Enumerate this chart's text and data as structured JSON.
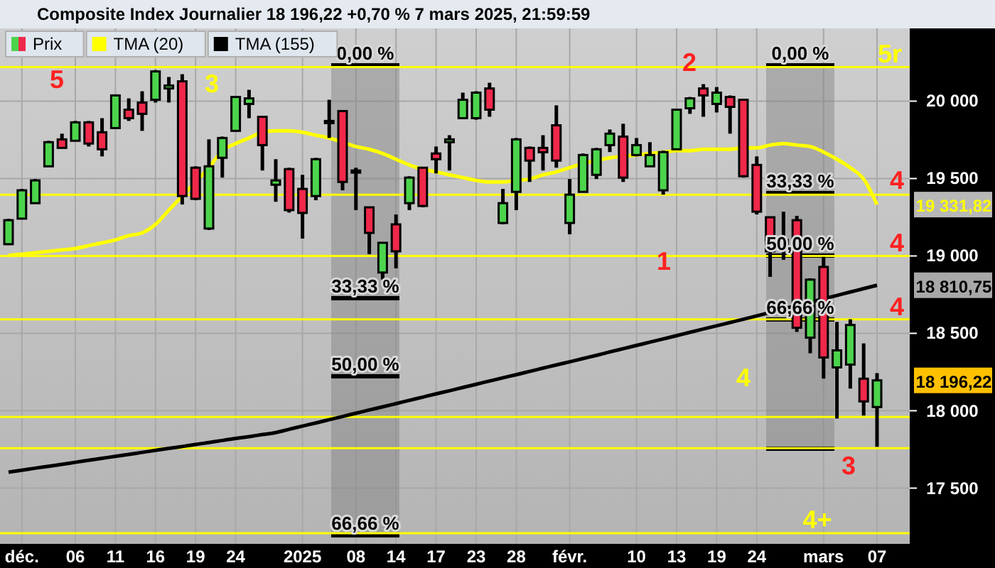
{
  "chart_data": {
    "type": "candlestick",
    "title": "Composite Index Journalier 18 196,22 +0,70 % 7 mars 2025, 21:59:59",
    "categories": [
      null,
      "déc.",
      null,
      null,
      null,
      "06",
      null,
      null,
      "11",
      null,
      null,
      "16",
      null,
      null,
      "19",
      null,
      null,
      "24",
      null,
      null,
      null,
      null,
      "2025",
      null,
      null,
      null,
      "08",
      null,
      null,
      "14",
      null,
      null,
      "17",
      null,
      null,
      "23",
      null,
      null,
      "28",
      null,
      null,
      null,
      "févr.",
      null,
      null,
      null,
      null,
      "10",
      null,
      null,
      "13",
      null,
      null,
      "19",
      null,
      null,
      "24",
      null,
      null,
      null,
      null,
      "mars",
      null,
      null,
      null,
      "07"
    ],
    "ylim": [
      17140,
      20470
    ],
    "yticks": [
      {
        "value": 17500,
        "label": "17 500"
      },
      {
        "value": 18000,
        "label": "18 000"
      },
      {
        "value": 18500,
        "label": "18 500"
      },
      {
        "value": 19000,
        "label": "19 000"
      },
      {
        "value": 19500,
        "label": "19 500"
      },
      {
        "value": 20000,
        "label": "20 000"
      }
    ],
    "grid": true,
    "legend": "top left",
    "series": [
      {
        "name": "TMA (20)",
        "type": "line",
        "color": "#ffff00",
        "values": [
          19003,
          19012,
          19021,
          19030,
          19039,
          19048,
          19067,
          19085,
          19103,
          19131,
          19149,
          19204,
          19296,
          19387,
          19478,
          19570,
          19680,
          19726,
          19762,
          19799,
          19808,
          19808,
          19799,
          19780,
          19762,
          19735,
          19707,
          19689,
          19662,
          19625,
          19588,
          19561,
          19543,
          19524,
          19506,
          19488,
          19478,
          19478,
          19488,
          19497,
          19524,
          19543,
          19570,
          19597,
          19616,
          19634,
          19643,
          19652,
          19662,
          19671,
          19680,
          19680,
          19689,
          19689,
          19689,
          19698,
          19698,
          19716,
          19726,
          19716,
          19707,
          19671,
          19625,
          19570,
          19497,
          19331.82
        ]
      },
      {
        "name": "TMA (155)",
        "type": "line",
        "color": "#000000",
        "values": [
          17603,
          17616,
          17629,
          17641,
          17654,
          17667,
          17680,
          17693,
          17705,
          17718,
          17731,
          17744,
          17757,
          17769,
          17782,
          17795,
          17808,
          17821,
          17833,
          17846,
          17859,
          17880,
          17901,
          17921,
          17942,
          17963,
          17984,
          18005,
          18025,
          18046,
          18067,
          18088,
          18109,
          18129,
          18150,
          18171,
          18192,
          18213,
          18233,
          18254,
          18275,
          18296,
          18316,
          18337,
          18358,
          18380,
          18401,
          18422,
          18443,
          18464,
          18485,
          18507,
          18528,
          18549,
          18570,
          18591,
          18613,
          18635,
          18657,
          18679,
          18701,
          18723,
          18745,
          18767,
          18789,
          18810.75
        ]
      },
      {
        "name": "Prix",
        "colors": [
          "#4cd44c",
          "#4cd44c",
          "#4cd44c",
          "#4cd44c",
          "#f0284a",
          "#4cd44c",
          "#f0284a",
          "#f0284a",
          "#4cd44c",
          "#f0284a",
          "#f0284a",
          "#4cd44c",
          "#4cd44c",
          "#f0284a",
          "#f0284a",
          "#4cd44c",
          "#4cd44c",
          "#4cd44c",
          "#4cd44c",
          "#f0284a",
          "#4cd44c",
          "#f0284a",
          "#f0284a",
          "#4cd44c",
          "#4cd44c",
          "#f0284a",
          "#f0284a",
          "#f0284a",
          "#4cd44c",
          "#f0284a",
          "#4cd44c",
          "#f0284a",
          "#f0284a",
          "#4cd44c",
          "#4cd44c",
          "#4cd44c",
          "#f0284a",
          "#4cd44c",
          "#4cd44c",
          "#f0284a",
          "#f0284a",
          "#f0284a",
          "#4cd44c",
          "#4cd44c",
          "#4cd44c",
          "#4cd44c",
          "#f0284a",
          "#4cd44c",
          "#4cd44c",
          "#4cd44c",
          "#4cd44c",
          "#4cd44c",
          "#f0284a",
          "#4cd44c",
          "#f0284a",
          "#f0284a",
          "#f0284a",
          "#f0284a",
          "#f0284a",
          "#f0284a",
          "#4cd44c",
          "#f0284a",
          "#4cd44c",
          "#4cd44c",
          "#f0284a",
          "#4cd44c"
        ],
        "ohlc": [
          [
            19076,
            19240,
            19070,
            19231
          ],
          [
            19241,
            19433,
            19241,
            19424
          ],
          [
            19341,
            19497,
            19341,
            19488
          ],
          [
            19579,
            19744,
            19579,
            19735
          ],
          [
            19753,
            19790,
            19698,
            19698
          ],
          [
            19744,
            19872,
            19744,
            19863
          ],
          [
            19863,
            19872,
            19707,
            19726
          ],
          [
            19799,
            19890,
            19643,
            19689
          ],
          [
            19826,
            20037,
            19826,
            20037
          ],
          [
            19945,
            20018,
            19872,
            19890
          ],
          [
            19991,
            20064,
            19808,
            19918
          ],
          [
            20009,
            20201,
            19991,
            20192
          ],
          [
            20082,
            20156,
            19991,
            20101
          ],
          [
            20128,
            20174,
            19332,
            19387
          ],
          [
            19570,
            19579,
            19360,
            19369
          ],
          [
            19177,
            19753,
            19167,
            19579
          ],
          [
            19634,
            19771,
            19506,
            19762
          ],
          [
            19808,
            20027,
            19808,
            20027
          ],
          [
            19982,
            20073,
            19890,
            20018
          ],
          [
            19899,
            19899,
            19552,
            19716
          ],
          [
            19460,
            19625,
            19350,
            19488
          ],
          [
            19561,
            19570,
            19280,
            19296
          ],
          [
            19433,
            19524,
            19112,
            19278
          ],
          [
            19387,
            19634,
            19360,
            19625
          ],
          [
            19863,
            20009,
            19762,
            19872
          ],
          [
            19936,
            19936,
            19424,
            19478
          ],
          [
            19552,
            19570,
            19296,
            19543
          ],
          [
            19314,
            19314,
            19012,
            19149
          ],
          [
            18893,
            19085,
            18847,
            19085
          ],
          [
            19204,
            19268,
            18920,
            19030
          ],
          [
            19341,
            19515,
            19296,
            19506
          ],
          [
            19570,
            19570,
            19314,
            19323
          ],
          [
            19662,
            19707,
            19533,
            19625
          ],
          [
            19735,
            19780,
            19552,
            19753
          ],
          [
            19890,
            20055,
            19890,
            20009
          ],
          [
            19890,
            20064,
            19880,
            20055
          ],
          [
            20082,
            20119,
            19899,
            19945
          ],
          [
            19213,
            19433,
            19204,
            19341
          ],
          [
            19414,
            19762,
            19296,
            19753
          ],
          [
            19698,
            19707,
            19478,
            19616
          ],
          [
            19698,
            19780,
            19552,
            19670
          ],
          [
            19844,
            19973,
            19570,
            19616
          ],
          [
            19213,
            19497,
            19140,
            19396
          ],
          [
            19414,
            19662,
            19414,
            19652
          ],
          [
            19524,
            19698,
            19497,
            19689
          ],
          [
            19716,
            19817,
            19671,
            19790
          ],
          [
            19771,
            19854,
            19478,
            19506
          ],
          [
            19652,
            19762,
            19643,
            19716
          ],
          [
            19579,
            19735,
            19579,
            19652
          ],
          [
            19424,
            19680,
            19396,
            19671
          ],
          [
            19689,
            19945,
            19689,
            19945
          ],
          [
            19954,
            20027,
            19918,
            20018
          ],
          [
            20082,
            20110,
            19899,
            20037
          ],
          [
            19982,
            20091,
            19927,
            20055
          ],
          [
            20027,
            20037,
            19790,
            19963
          ],
          [
            20009,
            20009,
            19506,
            19515
          ],
          [
            19588,
            19643,
            19268,
            19286
          ],
          [
            19250,
            19250,
            18865,
            19030
          ],
          [
            19103,
            19286,
            18975,
            19048
          ],
          [
            19231,
            19259,
            18509,
            18536
          ],
          [
            18472,
            18856,
            18371,
            18847
          ],
          [
            18929,
            18994,
            18207,
            18344
          ],
          [
            18280,
            18573,
            17950,
            18390
          ],
          [
            18298,
            18591,
            18143,
            18554
          ],
          [
            18207,
            18435,
            17969,
            18060
          ],
          [
            18024,
            18243,
            17767,
            18196.22
          ]
        ]
      }
    ],
    "ref_lines": [
      {
        "axis": "y",
        "value": 20220,
        "color": "#ffff00"
      },
      {
        "axis": "y",
        "value": 19396,
        "color": "#ffff00"
      },
      {
        "axis": "y",
        "value": 19000,
        "color": "#ffff00"
      },
      {
        "axis": "y",
        "value": 18591,
        "color": "#ffff00"
      },
      {
        "axis": "y",
        "value": 17960,
        "color": "#ffff00"
      },
      {
        "axis": "y",
        "value": 17758,
        "color": "#ffff00"
      },
      {
        "axis": "y",
        "value": 17209,
        "color": "#ffff00"
      }
    ],
    "annotations": [
      "5",
      "3",
      "2",
      "1",
      "0,00 %",
      "33,33 %",
      "50,00 %",
      "66,66 %",
      "0,00 %",
      "33,33 %",
      "50,00 %",
      "66,66 %",
      "5r",
      "4",
      "4",
      "4",
      "4",
      "3",
      "4+",
      "19 331,82",
      "18 810,75",
      "18 196,22"
    ]
  }
}
